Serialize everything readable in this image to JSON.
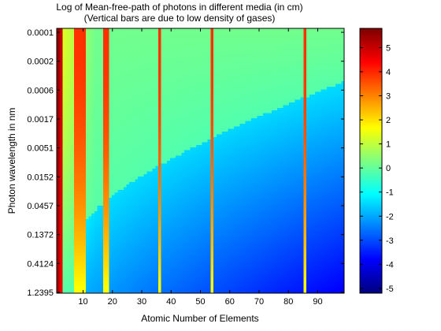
{
  "chart_data": {
    "type": "heatmap",
    "title": "Log of Mean-free-path of photons in different media (in cm)",
    "subtitle": "(Vertical bars are due to low density of gases)",
    "xlabel": "Atomic Number of Elements",
    "ylabel": "Photon wavelength in nm",
    "x_range": [
      1,
      99
    ],
    "x_ticks": [
      "10",
      "20",
      "30",
      "40",
      "50",
      "60",
      "70",
      "80",
      "90"
    ],
    "y_ticks": [
      "0.0001",
      "0.0002",
      "0.0006",
      "0.0017",
      "0.0051",
      "0.0152",
      "0.0457",
      "0.1372",
      "0.4124",
      "1.2395"
    ],
    "colorbar": {
      "min": -5.2,
      "max": 5.8,
      "ticks": [
        "5",
        "4",
        "3",
        "2",
        "1",
        "0",
        "-1",
        "-2",
        "-3",
        "-4",
        "-5"
      ],
      "colormap": "jet"
    },
    "gas_elements": [
      1,
      2,
      7,
      8,
      9,
      10,
      17,
      18,
      36,
      54,
      86
    ],
    "grid": false
  }
}
